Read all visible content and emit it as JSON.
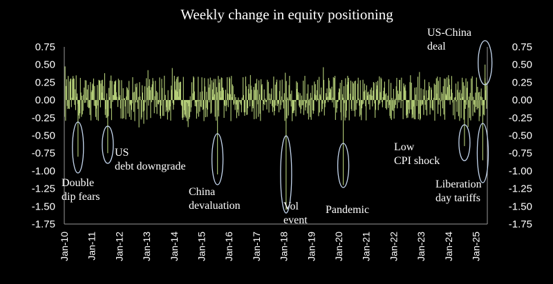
{
  "chart_data": {
    "type": "bar",
    "title": "Weekly change in equity positioning",
    "xlabel": "",
    "ylabel": "",
    "ylim": [
      -1.75,
      0.75
    ],
    "yticks": [
      "0.75",
      "0.50",
      "0.25",
      "0.00",
      "-0.25",
      "-0.50",
      "-0.75",
      "-1.00",
      "-1.25",
      "-1.50",
      "-1.75"
    ],
    "xticks": [
      "Jan-10",
      "Jan-11",
      "Jan-12",
      "Jan-13",
      "Jan-14",
      "Jan-15",
      "Jan-16",
      "Jan-17",
      "Jan-18",
      "Jan-19",
      "Jan-20",
      "Jan-21",
      "Jan-22",
      "Jan-23",
      "Jan-24",
      "Jan-25"
    ],
    "x_start": "2010-01",
    "x_end": "2025-06",
    "bar_color": "#b5cf79",
    "weekly_range": [
      -0.3,
      0.35
    ],
    "notable_events": [
      {
        "label": "Double dip fears",
        "date": "2010-07",
        "value": -0.8
      },
      {
        "label": "US debt downgrade",
        "date": "2011-08",
        "value": -0.75
      },
      {
        "label": "China devaluation",
        "date": "2015-08",
        "value": -1.05
      },
      {
        "label": "Vol event",
        "date": "2018-02",
        "value": -1.55
      },
      {
        "label": "Pandemic",
        "date": "2020-03",
        "value": -1.2
      },
      {
        "label": "Low CPI shock",
        "date": "2024-08",
        "value": -0.65
      },
      {
        "label": "Liberation day tariffs",
        "date": "2025-04",
        "value": -0.85
      },
      {
        "label": "US-China deal",
        "date": "2025-05",
        "value": 0.5
      }
    ],
    "grid": false,
    "legend": "none"
  }
}
